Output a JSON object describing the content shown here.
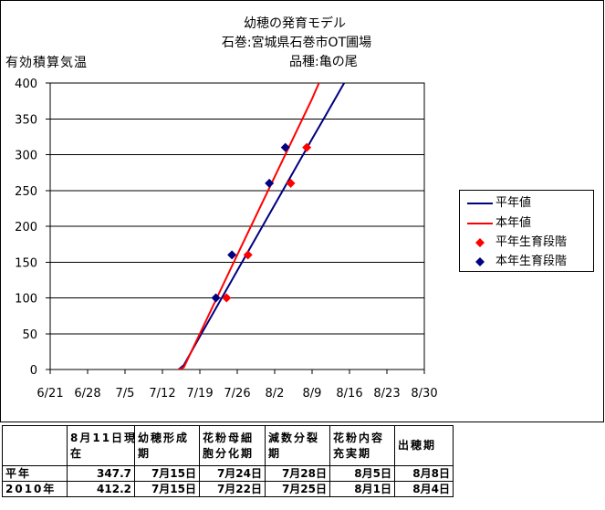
{
  "chart_data": {
    "type": "line",
    "title": [
      "幼穂の発育モデル",
      "石巻:宮城県石巻市OT圃場",
      "品種:亀の尾"
    ],
    "ylabel": "有効積算気温",
    "ylim": [
      0,
      400
    ],
    "yticks": [
      0,
      50,
      100,
      150,
      200,
      250,
      300,
      350,
      400
    ],
    "xlim": [
      "6/21",
      "8/30"
    ],
    "xticks": [
      "6/21",
      "6/28",
      "7/5",
      "7/12",
      "7/19",
      "7/26",
      "8/2",
      "8/9",
      "8/16",
      "8/23",
      "8/30"
    ],
    "grid": "horizontal",
    "legend": "right",
    "series": [
      {
        "name": "平年値",
        "type": "line",
        "color": "#000080",
        "points": [
          [
            "7/15",
            0
          ],
          [
            "7/16",
            6
          ],
          [
            "7/19",
            46
          ],
          [
            "7/26",
            138
          ],
          [
            "8/2",
            230
          ],
          [
            "8/9",
            322
          ],
          [
            "8/11",
            347.7
          ],
          [
            "8/15",
            400
          ]
        ]
      },
      {
        "name": "本年値",
        "type": "line",
        "color": "#FF0000",
        "points": [
          [
            "7/15",
            0
          ],
          [
            "7/16",
            3
          ],
          [
            "7/19",
            50
          ],
          [
            "7/26",
            160
          ],
          [
            "8/2",
            269
          ],
          [
            "8/9",
            378
          ],
          [
            "8/11",
            412.2
          ]
        ]
      },
      {
        "name": "平年生育段階",
        "type": "scatter",
        "marker": "diamond",
        "color": "#FF0000",
        "points": [
          [
            "7/24",
            100
          ],
          [
            "7/28",
            160
          ],
          [
            "8/5",
            260
          ],
          [
            "8/8",
            310
          ]
        ]
      },
      {
        "name": "本年生育段階",
        "type": "scatter",
        "marker": "diamond",
        "color": "#000080",
        "points": [
          [
            "7/22",
            100
          ],
          [
            "7/25",
            160
          ],
          [
            "8/1",
            260
          ],
          [
            "8/4",
            310
          ]
        ]
      }
    ]
  },
  "table": {
    "header": [
      [
        "8月11日現",
        "在"
      ],
      [
        "幼穂形成",
        "期"
      ],
      [
        "花粉母細",
        "胞分化期"
      ],
      [
        "減数分裂",
        "期"
      ],
      [
        "花粉内容",
        "充実期"
      ],
      [
        "出穂期"
      ]
    ],
    "rows": [
      [
        "平年",
        "347.7",
        "7月15日",
        "7月24日",
        "7月28日",
        "8月5日",
        "8月8日"
      ],
      [
        "2010年",
        "412.2",
        "7月15日",
        "7月22日",
        "7月25日",
        "8月1日",
        "8月4日"
      ]
    ]
  }
}
